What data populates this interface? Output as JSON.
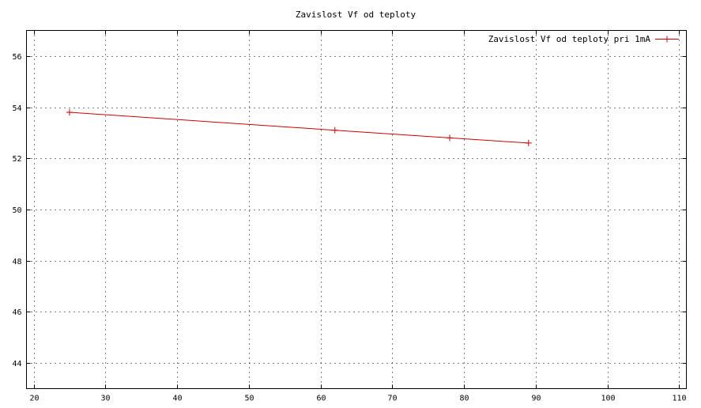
{
  "chart_data": {
    "type": "line",
    "title": "Zavislost Vf od teploty",
    "xlabel": "",
    "ylabel": "",
    "xlim": [
      19,
      111
    ],
    "ylim": [
      43,
      57
    ],
    "xticks": [
      20,
      30,
      40,
      50,
      60,
      70,
      80,
      90,
      100,
      110
    ],
    "yticks": [
      44,
      46,
      48,
      50,
      52,
      54,
      56
    ],
    "grid": true,
    "legend_position": "top-right",
    "series": [
      {
        "name": "Zavislost Vf od teploty pri 1mA",
        "color": "#cc0000",
        "marker": "plus",
        "x": [
          25,
          62,
          78,
          89
        ],
        "y": [
          53.8,
          53.1,
          52.8,
          52.6
        ]
      }
    ]
  }
}
